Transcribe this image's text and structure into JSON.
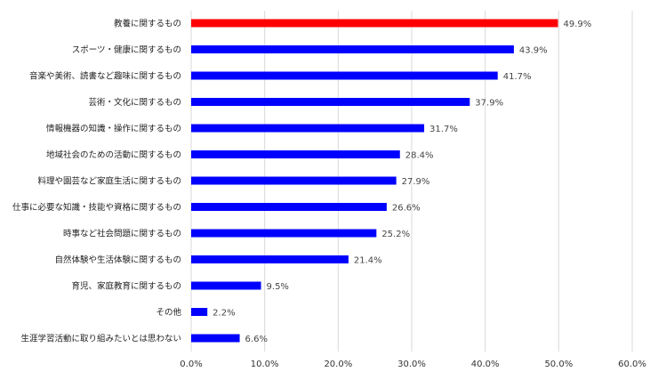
{
  "chart_data": {
    "type": "bar",
    "orientation": "horizontal",
    "categories": [
      "教養に関するもの",
      "スポーツ・健康に関するもの",
      "音楽や美術、読書など趣味に関するもの",
      "芸術・文化に関するもの",
      "情報機器の知識・操作に関するもの",
      "地域社会のための活動に関するもの",
      "料理や園芸など家庭生活に関するもの",
      "仕事に必要な知識・技能や資格に関するもの",
      "時事など社会問題に関するもの",
      "自然体験や生活体験に関するもの",
      "育児、家庭教育に関するもの",
      "その他",
      "生涯学習活動に取り組みたいとは思わない"
    ],
    "values": [
      49.9,
      43.9,
      41.7,
      37.9,
      31.7,
      28.4,
      27.9,
      26.6,
      25.2,
      21.4,
      9.5,
      2.2,
      6.6
    ],
    "value_labels": [
      "49.9%",
      "43.9%",
      "41.7%",
      "37.9%",
      "31.7%",
      "28.4%",
      "27.9%",
      "26.6%",
      "25.2%",
      "21.4%",
      "9.5%",
      "2.2%",
      "6.6%"
    ],
    "xlim": [
      0,
      60
    ],
    "xticks": [
      "0.0%",
      "10.0%",
      "20.0%",
      "30.0%",
      "40.0%",
      "50.0%",
      "60.0%"
    ],
    "grid": true,
    "colors": {
      "highlight": "#ff0000",
      "default": "#0000ff"
    },
    "highlight_index": 0
  }
}
